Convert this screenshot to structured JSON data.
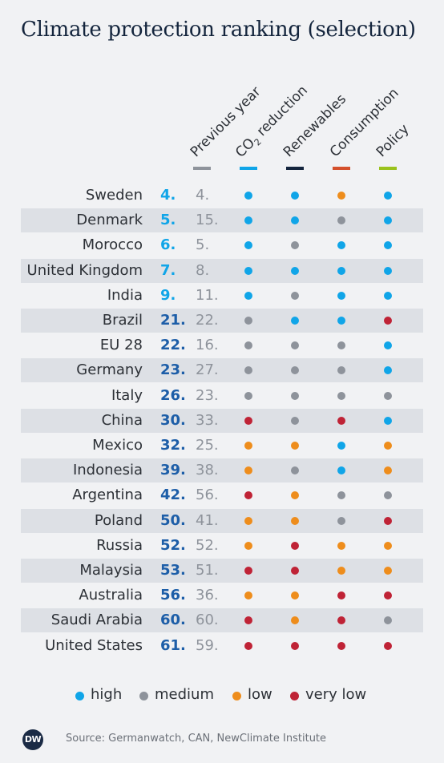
{
  "title": "Climate protection ranking (selection)",
  "columns": [
    {
      "label": "Previous year",
      "bar_color": "#8e939b"
    },
    {
      "label": "CO",
      "label_sub": "2",
      "label_rest": " reduction",
      "bar_color": "#10a5e8"
    },
    {
      "label": "Renewables",
      "bar_color": "#14253d"
    },
    {
      "label": "Consumption",
      "bar_color": "#d4502c"
    },
    {
      "label": "Policy",
      "bar_color": "#9ac21c"
    }
  ],
  "colors": {
    "high": "#10a5e8",
    "medium": "#8e939b",
    "low": "#ee8d1c",
    "very_low": "#bf2336",
    "rank_light": "#10a5e8",
    "rank_dark": "#1d5ea8"
  },
  "chart_data": {
    "type": "table",
    "title": "Climate protection ranking (selection)",
    "headers": [
      "Previous year",
      "CO2 reduction",
      "Renewables",
      "Consumption",
      "Policy"
    ],
    "rows": [
      {
        "country": "Sweden",
        "rank": "4.",
        "previous": "4.",
        "ratings": [
          "high",
          "high",
          "low",
          "high"
        ]
      },
      {
        "country": "Denmark",
        "rank": "5.",
        "previous": "15.",
        "ratings": [
          "high",
          "high",
          "medium",
          "high"
        ]
      },
      {
        "country": "Morocco",
        "rank": "6.",
        "previous": "5.",
        "ratings": [
          "high",
          "medium",
          "high",
          "high"
        ]
      },
      {
        "country": "United Kingdom",
        "rank": "7.",
        "previous": "8.",
        "ratings": [
          "high",
          "high",
          "high",
          "high"
        ]
      },
      {
        "country": "India",
        "rank": "9.",
        "previous": "11.",
        "ratings": [
          "high",
          "medium",
          "high",
          "high"
        ]
      },
      {
        "country": "Brazil",
        "rank": "21.",
        "previous": "22.",
        "ratings": [
          "medium",
          "high",
          "high",
          "very_low"
        ]
      },
      {
        "country": "EU 28",
        "rank": "22.",
        "previous": "16.",
        "ratings": [
          "medium",
          "medium",
          "medium",
          "high"
        ]
      },
      {
        "country": "Germany",
        "rank": "23.",
        "previous": "27.",
        "ratings": [
          "medium",
          "medium",
          "medium",
          "high"
        ]
      },
      {
        "country": "Italy",
        "rank": "26.",
        "previous": "23.",
        "ratings": [
          "medium",
          "medium",
          "medium",
          "medium"
        ]
      },
      {
        "country": "China",
        "rank": "30.",
        "previous": "33.",
        "ratings": [
          "very_low",
          "medium",
          "very_low",
          "high"
        ]
      },
      {
        "country": "Mexico",
        "rank": "32.",
        "previous": "25.",
        "ratings": [
          "low",
          "low",
          "high",
          "low"
        ]
      },
      {
        "country": "Indonesia",
        "rank": "39.",
        "previous": "38.",
        "ratings": [
          "low",
          "medium",
          "high",
          "low"
        ]
      },
      {
        "country": "Argentina",
        "rank": "42.",
        "previous": "56.",
        "ratings": [
          "very_low",
          "low",
          "medium",
          "medium"
        ]
      },
      {
        "country": "Poland",
        "rank": "50.",
        "previous": "41.",
        "ratings": [
          "low",
          "low",
          "medium",
          "very_low"
        ]
      },
      {
        "country": "Russia",
        "rank": "52.",
        "previous": "52.",
        "ratings": [
          "low",
          "very_low",
          "low",
          "low"
        ]
      },
      {
        "country": "Malaysia",
        "rank": "53.",
        "previous": "51.",
        "ratings": [
          "very_low",
          "very_low",
          "low",
          "low"
        ]
      },
      {
        "country": "Australia",
        "rank": "56.",
        "previous": "36.",
        "ratings": [
          "low",
          "low",
          "very_low",
          "very_low"
        ]
      },
      {
        "country": "Saudi Arabia",
        "rank": "60.",
        "previous": "60.",
        "ratings": [
          "very_low",
          "low",
          "very_low",
          "medium"
        ]
      },
      {
        "country": "United States",
        "rank": "61.",
        "previous": "59.",
        "ratings": [
          "very_low",
          "very_low",
          "very_low",
          "very_low"
        ]
      }
    ],
    "legend": [
      {
        "key": "high",
        "label": "high"
      },
      {
        "key": "medium",
        "label": "medium"
      },
      {
        "key": "low",
        "label": "low"
      },
      {
        "key": "very_low",
        "label": "very low"
      }
    ]
  },
  "footer": {
    "logo_text": "DW",
    "source": "Source: Germanwatch, CAN, NewClimate Institute"
  }
}
